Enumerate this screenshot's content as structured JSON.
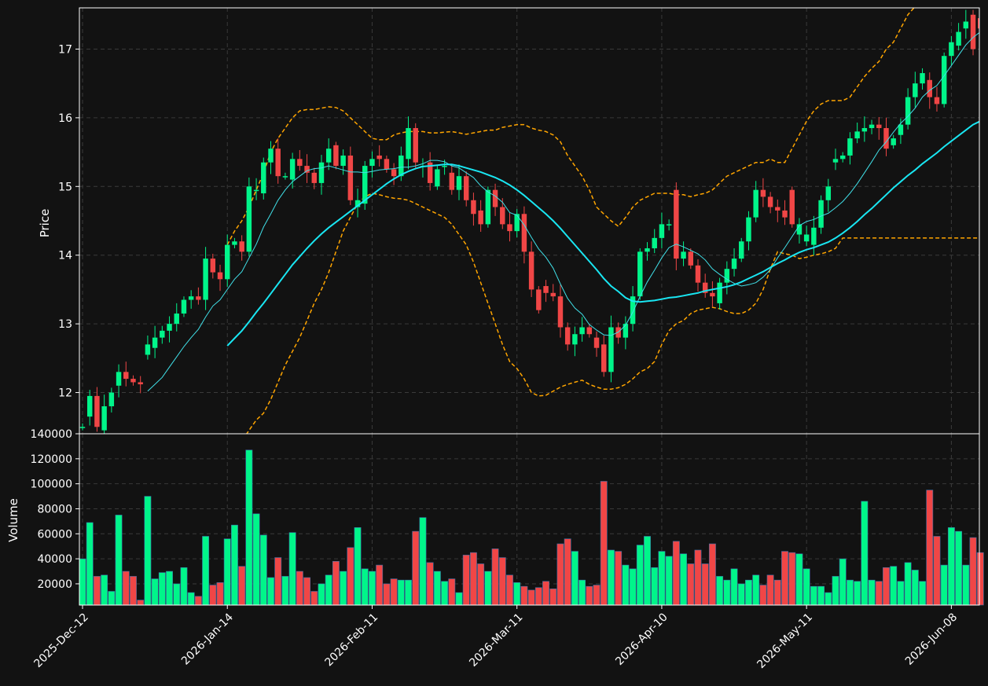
{
  "chart_data": {
    "type": "candlestick",
    "background": "#121212",
    "colors": {
      "up": "#00f58a",
      "down": "#f04646",
      "ma_fast": "#40e0e8",
      "ma_slow": "#19e6f2",
      "bollinger": "#ffa500",
      "grid": "#3a3a3a",
      "axis": "#ffffff"
    },
    "grid": true,
    "price_panel": {
      "ylabel": "Price",
      "ylim": [
        11.4,
        17.6
      ],
      "yticks": [
        12,
        13,
        14,
        15,
        16,
        17
      ]
    },
    "volume_panel": {
      "ylabel": "Volume",
      "ylim": [
        3000,
        140000
      ],
      "yticks": [
        20000,
        40000,
        60000,
        80000,
        100000,
        120000,
        140000
      ]
    },
    "xtick_labels": [
      "2025-Dec-12",
      "2026-Jan-14",
      "2026-Feb-11",
      "2026-Mar-11",
      "2026-Apr-10",
      "2026-May-11",
      "2026-Jun-08"
    ],
    "xtick_index": [
      0,
      20,
      40,
      60,
      80,
      100,
      120
    ],
    "start_date": "2025-12-12",
    "days": 125,
    "close": [
      11.5,
      11.95,
      11.5,
      11.8,
      12.0,
      12.3,
      12.2,
      12.15,
      12.12,
      12.7,
      12.8,
      12.9,
      13.0,
      13.15,
      13.35,
      13.4,
      13.35,
      13.95,
      13.75,
      13.65,
      14.15,
      14.2,
      14.05,
      15.0,
      14.95,
      15.35,
      15.55,
      15.15,
      15.15,
      15.4,
      15.3,
      15.2,
      15.05,
      15.35,
      15.55,
      15.3,
      15.45,
      14.8,
      14.8,
      15.3,
      15.4,
      15.4,
      15.25,
      15.15,
      15.45,
      15.85,
      15.35,
      15.3,
      15.05,
      15.25,
      15.3,
      14.95,
      15.15,
      14.8,
      14.6,
      14.45,
      14.95,
      14.7,
      14.45,
      14.35,
      14.6,
      14.05,
      13.5,
      13.2,
      13.45,
      13.4,
      12.95,
      12.7,
      12.85,
      12.95,
      12.85,
      12.65,
      12.3,
      12.95,
      12.8,
      13.0,
      13.4,
      14.05,
      14.1,
      14.25,
      14.45,
      14.45,
      13.95,
      14.05,
      13.85,
      13.6,
      13.45,
      13.4,
      13.6,
      13.8,
      13.95,
      14.2,
      14.55,
      14.95,
      14.85,
      14.7,
      14.65,
      14.55,
      14.45,
      14.45,
      14.3,
      14.4,
      14.8,
      15.0,
      15.4,
      15.45,
      15.7,
      15.8,
      15.85,
      15.9,
      15.85,
      15.55,
      15.7,
      15.9,
      16.3,
      16.5,
      16.65,
      16.3,
      16.2,
      16.9,
      17.1,
      17.25,
      17.4,
      17.0,
      17.3
    ],
    "open": [
      11.5,
      11.65,
      11.95,
      11.45,
      11.8,
      12.1,
      12.3,
      12.2,
      12.15,
      12.55,
      12.65,
      12.8,
      12.9,
      13.0,
      13.15,
      13.35,
      13.4,
      13.35,
      13.95,
      13.75,
      13.65,
      14.15,
      14.2,
      14.05,
      14.95,
      14.9,
      15.35,
      15.55,
      15.15,
      15.1,
      15.4,
      15.3,
      15.2,
      15.05,
      15.35,
      15.6,
      15.3,
      15.45,
      14.7,
      14.75,
      15.3,
      15.45,
      15.4,
      15.25,
      15.15,
      15.4,
      15.85,
      15.3,
      15.35,
      15.0,
      15.3,
      15.2,
      14.95,
      15.15,
      14.8,
      14.65,
      14.45,
      14.95,
      14.7,
      14.45,
      14.35,
      14.6,
      14.05,
      13.5,
      13.55,
      13.45,
      13.4,
      12.95,
      12.7,
      12.85,
      12.95,
      12.8,
      12.7,
      12.3,
      12.95,
      12.8,
      13.0,
      13.4,
      14.05,
      14.1,
      14.25,
      14.45,
      14.95,
      13.95,
      14.05,
      13.85,
      13.6,
      13.45,
      13.3,
      13.6,
      13.8,
      13.95,
      14.2,
      14.55,
      14.95,
      14.85,
      14.7,
      14.65,
      14.95,
      14.3,
      14.2,
      14.15,
      14.4,
      14.8,
      15.35,
      15.4,
      15.45,
      15.7,
      15.8,
      15.85,
      15.9,
      15.85,
      15.6,
      15.75,
      15.9,
      16.3,
      16.5,
      16.55,
      16.3,
      16.2,
      16.9,
      17.05,
      17.3,
      17.5,
      17.45
    ],
    "volume": [
      40000,
      69000,
      26000,
      27000,
      14000,
      75000,
      30000,
      26000,
      7000,
      90000,
      24000,
      29000,
      30000,
      20000,
      33000,
      13000,
      10000,
      58000,
      19000,
      21000,
      56000,
      67000,
      34000,
      127000,
      76000,
      59000,
      25000,
      41000,
      26000,
      61000,
      30000,
      25000,
      14000,
      20000,
      27000,
      38000,
      30000,
      49000,
      65000,
      32000,
      30000,
      35000,
      20000,
      24000,
      23000,
      23000,
      62000,
      73000,
      37000,
      30000,
      22000,
      24000,
      13000,
      43000,
      45000,
      36000,
      30000,
      48000,
      41000,
      27000,
      21000,
      18000,
      15000,
      17000,
      22000,
      16000,
      52000,
      56000,
      46000,
      23000,
      18000,
      19000,
      102000,
      47000,
      46000,
      35000,
      32000,
      51000,
      58000,
      33000,
      46000,
      42000,
      54000,
      44000,
      36000,
      47000,
      36000,
      52000,
      26000,
      23000,
      32000,
      20000,
      23000,
      27000,
      19000,
      27000,
      23000,
      46000,
      45000,
      44000,
      32000,
      18000,
      18000,
      13000,
      26000,
      40000,
      23000,
      22000,
      86000,
      23000,
      22000,
      33000,
      34000,
      22000,
      37000,
      31000,
      22000,
      95000,
      58000,
      35000,
      65000,
      62000,
      35000,
      57000,
      45000
    ],
    "ma_fast": [
      null,
      null,
      null,
      null,
      null,
      null,
      null,
      null,
      null,
      12.02,
      12.12,
      12.22,
      12.37,
      12.52,
      12.67,
      12.8,
      12.92,
      13.1,
      13.26,
      13.35,
      13.5,
      13.65,
      13.76,
      13.96,
      14.16,
      14.41,
      14.6,
      14.8,
      14.95,
      15.07,
      15.15,
      15.23,
      15.26,
      15.27,
      15.3,
      15.27,
      15.24,
      15.21,
      15.21,
      15.2,
      15.22,
      15.24,
      15.25,
      15.26,
      15.28,
      15.28,
      15.3,
      15.33,
      15.38,
      15.38,
      15.36,
      15.3,
      15.27,
      15.2,
      15.13,
      15.01,
      14.92,
      14.86,
      14.77,
      14.62,
      14.58,
      14.44,
      14.26,
      14.09,
      13.97,
      13.81,
      13.58,
      13.37,
      13.23,
      13.14,
      12.99,
      12.91,
      12.84,
      12.83,
      12.88,
      12.98,
      13.17,
      13.4,
      13.61,
      13.78,
      13.96,
      14.11,
      14.16,
      14.12,
      14.07,
      14.02,
      13.93,
      13.8,
      13.72,
      13.65,
      13.59,
      13.55,
      13.57,
      13.6,
      13.68,
      13.79,
      13.96,
      14.11,
      14.27,
      14.43,
      14.49,
      14.52,
      14.57,
      14.61,
      14.69,
      14.78,
      14.9,
      15.04,
      15.2,
      15.36,
      15.53,
      15.65,
      15.79,
      15.92,
      16.02,
      16.14,
      16.3,
      16.4,
      16.47,
      16.61,
      16.76,
      16.91,
      17.06,
      17.17,
      17.25
    ],
    "ma_slow": [
      null,
      null,
      null,
      null,
      null,
      null,
      null,
      null,
      null,
      null,
      null,
      null,
      null,
      null,
      null,
      null,
      null,
      null,
      null,
      null,
      12.68,
      12.79,
      12.9,
      13.03,
      13.17,
      13.3,
      13.44,
      13.58,
      13.72,
      13.86,
      13.98,
      14.1,
      14.21,
      14.31,
      14.4,
      14.48,
      14.56,
      14.64,
      14.72,
      14.8,
      14.88,
      14.96,
      15.04,
      15.11,
      15.17,
      15.22,
      15.26,
      15.29,
      15.3,
      15.31,
      15.32,
      15.32,
      15.3,
      15.27,
      15.24,
      15.21,
      15.17,
      15.13,
      15.08,
      15.02,
      14.95,
      14.87,
      14.78,
      14.69,
      14.6,
      14.5,
      14.39,
      14.27,
      14.15,
      14.03,
      13.91,
      13.79,
      13.66,
      13.55,
      13.47,
      13.38,
      13.33,
      13.32,
      13.33,
      13.34,
      13.36,
      13.38,
      13.39,
      13.41,
      13.43,
      13.45,
      13.48,
      13.5,
      13.52,
      13.54,
      13.57,
      13.61,
      13.66,
      13.71,
      13.76,
      13.82,
      13.88,
      13.93,
      13.99,
      14.04,
      14.08,
      14.11,
      14.15,
      14.19,
      14.25,
      14.32,
      14.4,
      14.49,
      14.59,
      14.68,
      14.78,
      14.88,
      14.98,
      15.07,
      15.16,
      15.24,
      15.33,
      15.41,
      15.49,
      15.58,
      15.66,
      15.74,
      15.82,
      15.9,
      15.95
    ],
    "bb_upper": [
      null,
      null,
      null,
      null,
      null,
      null,
      null,
      null,
      null,
      null,
      null,
      null,
      null,
      null,
      null,
      null,
      null,
      null,
      null,
      null,
      14.15,
      14.35,
      14.5,
      14.7,
      14.95,
      15.2,
      15.5,
      15.7,
      15.85,
      16.0,
      16.1,
      16.12,
      16.12,
      16.14,
      16.16,
      16.15,
      16.1,
      16.0,
      15.9,
      15.8,
      15.7,
      15.68,
      15.68,
      15.75,
      15.78,
      15.8,
      15.8,
      15.8,
      15.78,
      15.78,
      15.79,
      15.8,
      15.78,
      15.76,
      15.78,
      15.8,
      15.82,
      15.82,
      15.86,
      15.88,
      15.9,
      15.9,
      15.85,
      15.82,
      15.8,
      15.75,
      15.65,
      15.45,
      15.3,
      15.15,
      14.95,
      14.7,
      14.6,
      14.5,
      14.42,
      14.55,
      14.7,
      14.8,
      14.85,
      14.9,
      14.9,
      14.9,
      14.88,
      14.88,
      14.85,
      14.88,
      14.9,
      14.95,
      15.05,
      15.15,
      15.2,
      15.25,
      15.3,
      15.35,
      15.35,
      15.4,
      15.35,
      15.35,
      15.55,
      15.75,
      15.95,
      16.1,
      16.2,
      16.25,
      16.25,
      16.25,
      16.3,
      16.45,
      16.6,
      16.72,
      16.82,
      17.0,
      17.1,
      17.3,
      17.5,
      17.62,
      17.72,
      17.9,
      18.05,
      18.2,
      18.3,
      18.4,
      18.5,
      18.55,
      18.6
    ],
    "bb_lower": [
      null,
      null,
      null,
      null,
      null,
      null,
      null,
      null,
      null,
      null,
      null,
      null,
      null,
      null,
      null,
      null,
      null,
      null,
      null,
      null,
      11.15,
      11.22,
      11.3,
      11.45,
      11.6,
      11.7,
      11.9,
      12.15,
      12.4,
      12.6,
      12.8,
      13.05,
      13.3,
      13.5,
      13.75,
      14.05,
      14.35,
      14.55,
      14.75,
      14.85,
      14.9,
      14.88,
      14.85,
      14.83,
      14.82,
      14.8,
      14.75,
      14.7,
      14.65,
      14.6,
      14.55,
      14.45,
      14.3,
      14.15,
      13.9,
      13.6,
      13.3,
      13.0,
      12.7,
      12.45,
      12.35,
      12.2,
      12.0,
      11.95,
      11.96,
      12.02,
      12.08,
      12.12,
      12.15,
      12.18,
      12.12,
      12.08,
      12.05,
      12.05,
      12.07,
      12.12,
      12.2,
      12.3,
      12.35,
      12.45,
      12.7,
      12.9,
      13.0,
      13.05,
      13.15,
      13.2,
      13.22,
      13.24,
      13.22,
      13.18,
      13.15,
      13.15,
      13.2,
      13.3,
      13.5,
      13.8,
      14.05,
      14.02,
      14.0,
      13.95,
      13.97,
      14.0,
      14.02,
      14.05,
      14.1,
      14.25,
      14.25,
      14.25,
      14.25,
      14.25,
      14.25,
      14.25,
      14.25,
      14.25,
      14.25,
      14.25,
      14.25,
      14.25,
      14.25,
      14.25,
      14.25,
      14.25,
      14.25,
      14.25,
      14.25,
      14.25
    ]
  }
}
